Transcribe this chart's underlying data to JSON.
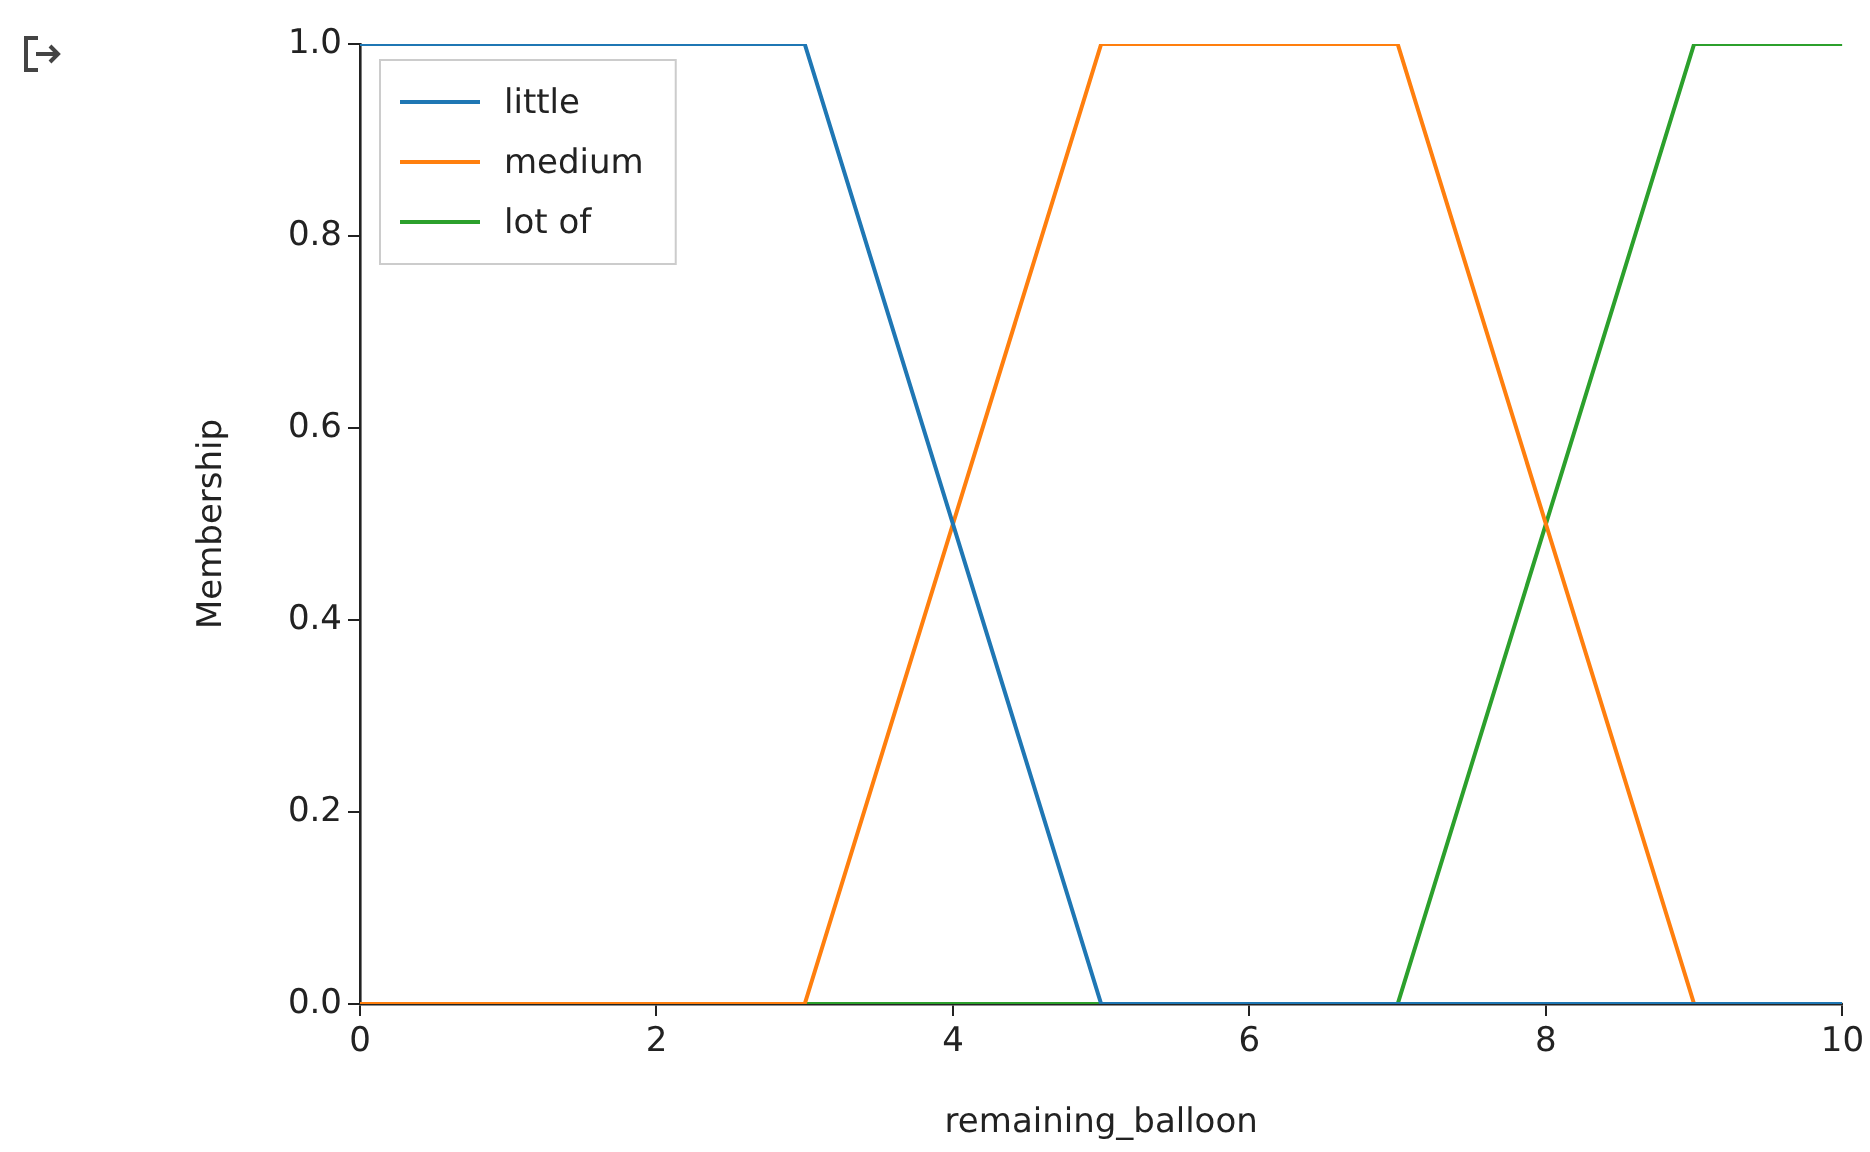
{
  "chart_data": {
    "type": "line",
    "xlabel": "remaining_balloon",
    "ylabel": "Membership",
    "xlim": [
      0,
      10
    ],
    "xticks": [
      0,
      2,
      4,
      6,
      8,
      10
    ],
    "ylim": [
      0,
      1
    ],
    "yticks": [
      {
        "value": 0,
        "label": "0.0"
      },
      {
        "value": 0.2,
        "label": "0.2"
      },
      {
        "value": 0.4,
        "label": "0.4"
      },
      {
        "value": 0.6,
        "label": "0.6"
      },
      {
        "value": 0.8,
        "label": "0.8"
      },
      {
        "value": 1,
        "label": "1.0"
      }
    ],
    "grid": false,
    "legend": "top left",
    "marker": "none",
    "line_style": "solid",
    "series": [
      {
        "name": "little",
        "color": "#1f77b4",
        "x": [
          0,
          3,
          5,
          10
        ],
        "values": [
          1,
          1,
          0,
          0
        ]
      },
      {
        "name": "medium",
        "color": "#ff7f0e",
        "x": [
          0,
          3,
          5,
          7,
          9,
          10
        ],
        "values": [
          0,
          0,
          1,
          1,
          0,
          0
        ]
      },
      {
        "name": "lot of",
        "color": "#2ca02c",
        "x": [
          0,
          7,
          9,
          10
        ],
        "values": [
          0,
          0,
          1,
          1
        ]
      }
    ]
  }
}
